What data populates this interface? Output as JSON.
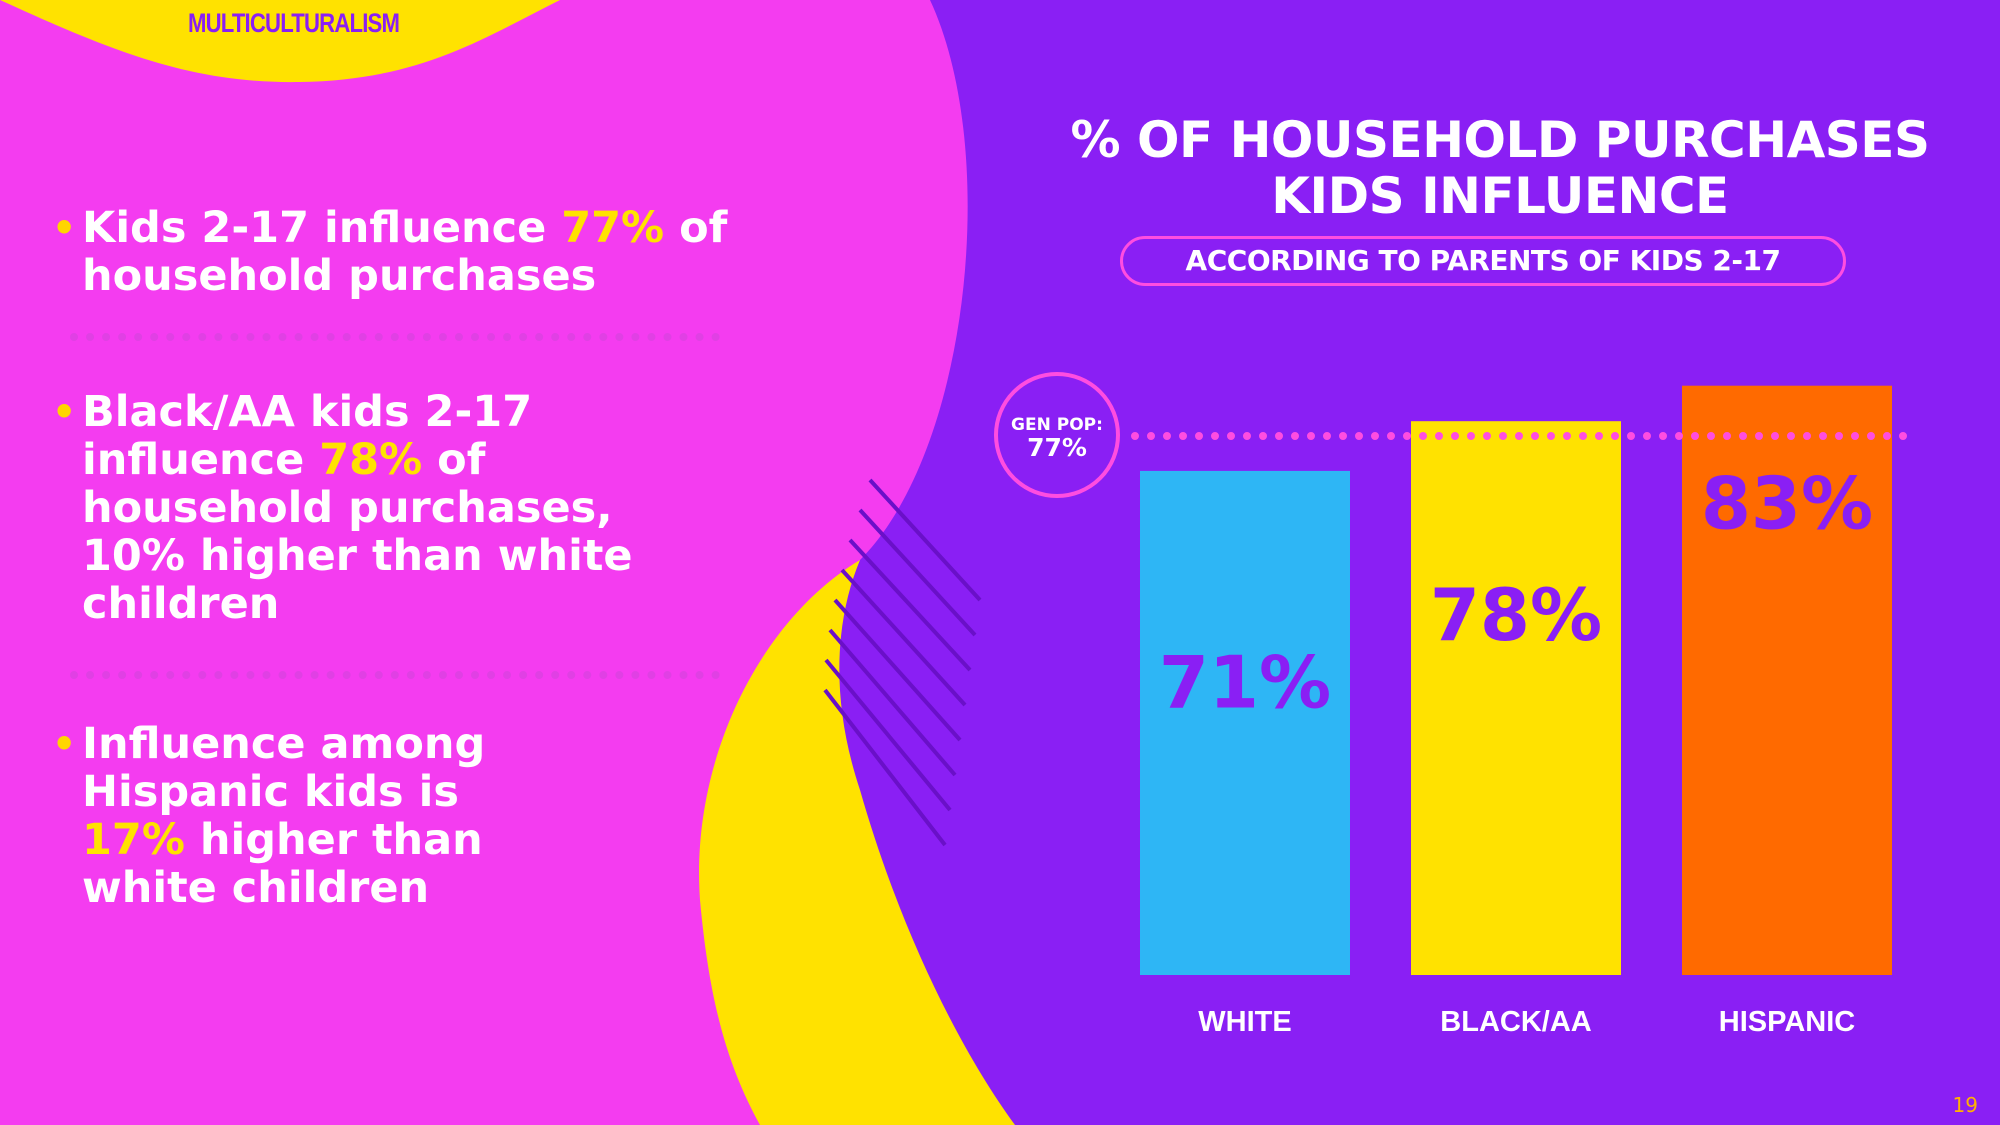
{
  "section_tag": "MULTICULTURALISM",
  "bullets": [
    {
      "parts": [
        "Kids 2-17 influence ",
        "77%",
        " of household purchases"
      ]
    },
    {
      "parts": [
        "Black/AA kids 2-17 influence ",
        "78%",
        " of household purchases, 10% higher than white children"
      ]
    },
    {
      "parts": [
        "Influence among Hispanic kids is ",
        "17%",
        " higher than white children"
      ]
    }
  ],
  "chart_data": {
    "type": "bar",
    "title": "% OF HOUSEHOLD PURCHASES KIDS INFLUENCE",
    "subtitle": "ACCORDING TO PARENTS OF KIDS 2-17",
    "categories": [
      "WHITE",
      "BLACK/AA",
      "HISPANIC"
    ],
    "values": [
      71,
      78,
      83
    ],
    "value_labels": [
      "71%",
      "78%",
      "83%"
    ],
    "bar_colors": [
      "#2eb6f5",
      "#ffe200",
      "#ff6a00"
    ],
    "reference_line": {
      "label": "GEN POP:",
      "value": 77,
      "value_label": "77%"
    },
    "ylim": [
      0,
      83
    ]
  },
  "colors": {
    "purple": "#8a1ff4",
    "magenta": "#f43cf0",
    "yellow": "#ffe200",
    "pink_accent": "#ff4de0"
  },
  "page_number": "19"
}
